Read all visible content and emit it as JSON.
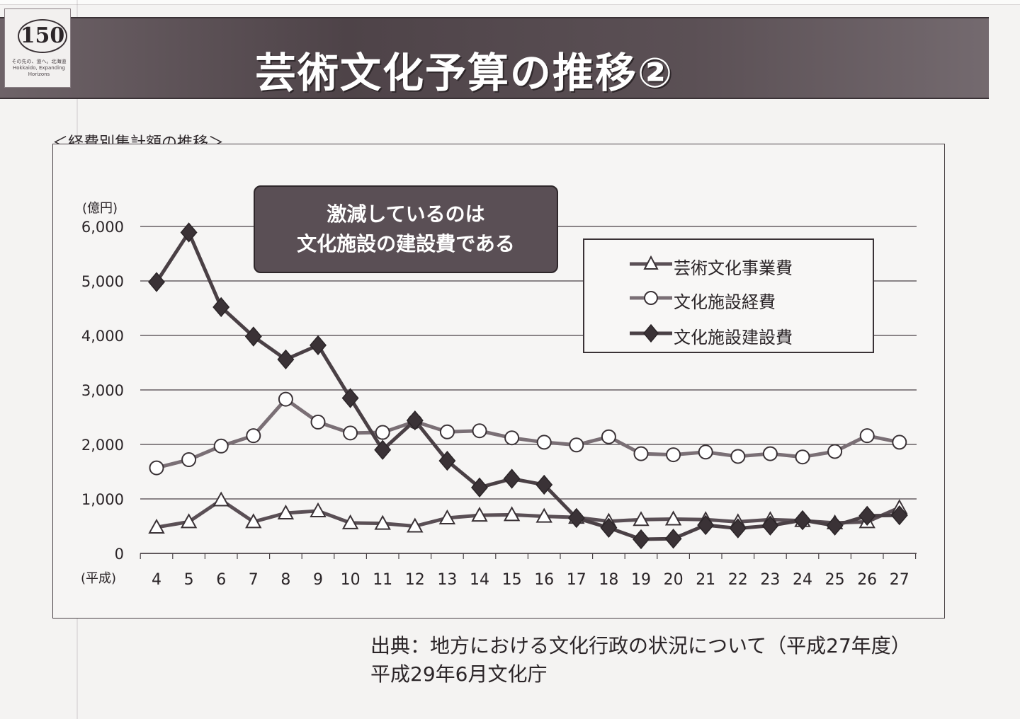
{
  "header": {
    "title": "芸術文化予算の推移②",
    "logo_number": "150",
    "logo_text": "その先の、道へ。北海道 Hokkaido, Expanding Horizons"
  },
  "caption": "＜経費別集計額の推移＞",
  "callout": {
    "line1": "激減しているのは",
    "line2": "文化施設の建設費である"
  },
  "source": {
    "line1": "出典：地方における文化行政の状況について（平成27年度）",
    "line2": "平成29年6月文化庁"
  },
  "chart_data": {
    "type": "line",
    "ylabel": "(億円)",
    "xlabel": "(平成)",
    "ylim": [
      0,
      6000
    ],
    "yticks": [
      "0",
      "1,000",
      "2,000",
      "3,000",
      "4,000",
      "5,000",
      "6,000"
    ],
    "grid": true,
    "legend_position": "top-right",
    "x": [
      "4",
      "5",
      "6",
      "7",
      "8",
      "9",
      "10",
      "11",
      "12",
      "13",
      "14",
      "15",
      "16",
      "17",
      "18",
      "19",
      "20",
      "21",
      "22",
      "23",
      "24",
      "25",
      "26",
      "27"
    ],
    "series": [
      {
        "name": "芸術文化事業費",
        "marker": "triangle-open",
        "color": "#5a4f55",
        "values": [
          480,
          580,
          980,
          580,
          740,
          780,
          560,
          550,
          500,
          650,
          700,
          710,
          680,
          660,
          590,
          620,
          630,
          620,
          580,
          620,
          600,
          560,
          580,
          840
        ]
      },
      {
        "name": "文化施設経費",
        "marker": "circle-open",
        "color": "#7a6f75",
        "values": [
          1570,
          1720,
          1970,
          2160,
          2830,
          2410,
          2210,
          2220,
          2420,
          2230,
          2250,
          2120,
          2040,
          1990,
          2140,
          1830,
          1810,
          1860,
          1780,
          1830,
          1770,
          1870,
          2160,
          2040
        ]
      },
      {
        "name": "文化施設建設費",
        "marker": "diamond-filled",
        "color": "#4a4045",
        "values": [
          4980,
          5890,
          4520,
          3980,
          3560,
          3820,
          2850,
          1900,
          2440,
          1700,
          1210,
          1370,
          1260,
          650,
          470,
          260,
          270,
          520,
          460,
          510,
          610,
          510,
          690,
          700
        ]
      }
    ]
  }
}
